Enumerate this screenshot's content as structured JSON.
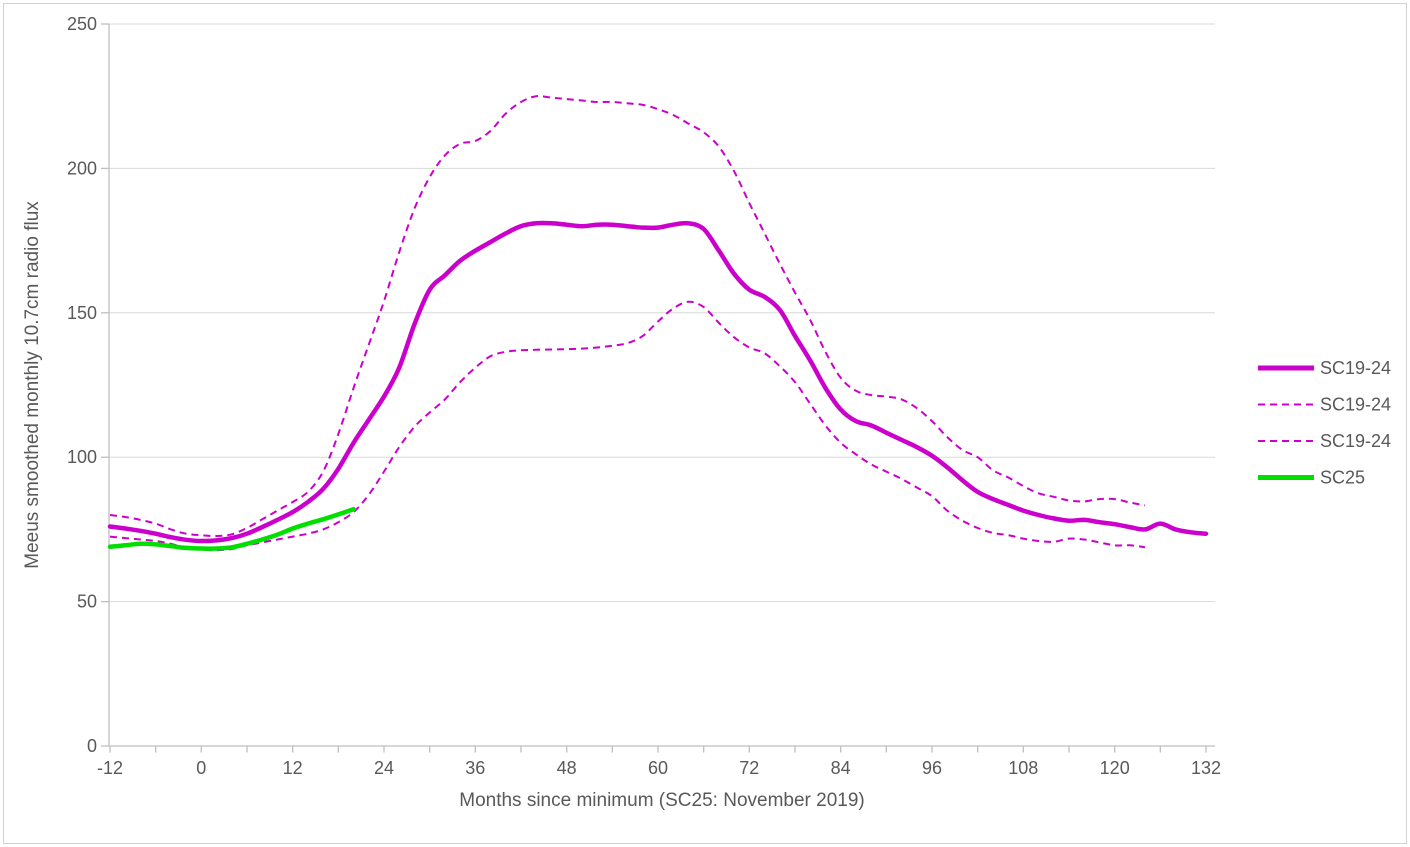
{
  "window": {
    "background": "#FFFFFF",
    "border_color": "#D2D2D2"
  },
  "chart_data": {
    "type": "line",
    "title": "",
    "xlabel": "Months since minimum (SC25: November 2019)",
    "ylabel": "Meeus smoothed monthly 10.7cm radio flux",
    "xlim": [
      -12,
      132
    ],
    "ylim": [
      0,
      250
    ],
    "grid": "horizontal",
    "x_ticks": [
      -12,
      0,
      12,
      24,
      36,
      48,
      60,
      72,
      84,
      96,
      108,
      120,
      132
    ],
    "x_tick_labels": [
      "-12",
      "0",
      "12",
      "24",
      "36",
      "48",
      "60",
      "72",
      "84",
      "96",
      "108",
      "120",
      "132"
    ],
    "x_minor_tick_step": 6,
    "y_ticks": [
      0,
      50,
      100,
      150,
      200,
      250
    ],
    "y_tick_labels": [
      "0",
      "50",
      "100",
      "150",
      "200",
      "250"
    ],
    "colors": {
      "magenta": "#CC00CC",
      "green": "#00DF00",
      "text": "#595959",
      "gridline": "#D9D9D9",
      "axis_line": "#BFBFBF"
    },
    "legend": {
      "position": "right",
      "entries": [
        {
          "label": "SC19-24",
          "style": "solid",
          "color": "#CC00CC"
        },
        {
          "label": "SC19-24",
          "style": "dashed",
          "color": "#CC00CC"
        },
        {
          "label": "SC19-24",
          "style": "dashed",
          "color": "#CC00CC"
        },
        {
          "label": "SC25",
          "style": "solid",
          "color": "#00DF00"
        }
      ]
    },
    "series": [
      {
        "name": "SC19-24",
        "role": "max",
        "style": "dashed",
        "color": "#CC00CC",
        "width": 2,
        "points": [
          [
            -12,
            80
          ],
          [
            -10,
            79.3
          ],
          [
            -8,
            78.3
          ],
          [
            -6,
            77
          ],
          [
            -4,
            75
          ],
          [
            -2,
            73.5
          ],
          [
            0,
            73
          ],
          [
            2,
            72.7
          ],
          [
            4,
            73.3
          ],
          [
            6,
            75.5
          ],
          [
            8,
            78.5
          ],
          [
            10,
            81.5
          ],
          [
            12,
            84.5
          ],
          [
            14,
            88
          ],
          [
            16,
            95
          ],
          [
            18,
            108
          ],
          [
            20,
            124
          ],
          [
            22,
            139
          ],
          [
            24,
            154
          ],
          [
            26,
            171
          ],
          [
            28,
            186
          ],
          [
            30,
            197
          ],
          [
            32,
            204.5
          ],
          [
            34,
            208.5
          ],
          [
            36,
            209.5
          ],
          [
            38,
            213
          ],
          [
            40,
            219
          ],
          [
            42,
            223
          ],
          [
            44,
            225
          ],
          [
            46,
            224.5
          ],
          [
            48,
            224
          ],
          [
            50,
            223.5
          ],
          [
            52,
            223
          ],
          [
            54,
            223
          ],
          [
            56,
            222.5
          ],
          [
            58,
            222
          ],
          [
            60,
            220.5
          ],
          [
            62,
            218.5
          ],
          [
            64,
            215.5
          ],
          [
            66,
            212.5
          ],
          [
            68,
            207.5
          ],
          [
            70,
            199
          ],
          [
            72,
            188
          ],
          [
            74,
            177.5
          ],
          [
            76,
            167
          ],
          [
            78,
            157
          ],
          [
            80,
            147.5
          ],
          [
            82,
            136.5
          ],
          [
            84,
            127.5
          ],
          [
            86,
            123
          ],
          [
            88,
            121.5
          ],
          [
            90,
            121
          ],
          [
            92,
            120
          ],
          [
            94,
            117
          ],
          [
            96,
            112.5
          ],
          [
            98,
            107
          ],
          [
            100,
            102.5
          ],
          [
            102,
            100
          ],
          [
            104,
            95.5
          ],
          [
            106,
            93
          ],
          [
            108,
            90
          ],
          [
            110,
            87.5
          ],
          [
            112,
            86.3
          ],
          [
            114,
            85
          ],
          [
            116,
            84.7
          ],
          [
            118,
            85.5
          ],
          [
            120,
            85.5
          ],
          [
            122,
            84.3
          ],
          [
            124,
            83.3
          ]
        ]
      },
      {
        "name": "SC19-24",
        "role": "min",
        "style": "dashed",
        "color": "#CC00CC",
        "width": 2,
        "points": [
          [
            -12,
            72.5
          ],
          [
            -10,
            72
          ],
          [
            -8,
            71.5
          ],
          [
            -6,
            71
          ],
          [
            -4,
            70
          ],
          [
            -2,
            68.7
          ],
          [
            0,
            68
          ],
          [
            2,
            67.8
          ],
          [
            4,
            68.2
          ],
          [
            6,
            69.5
          ],
          [
            8,
            70.5
          ],
          [
            10,
            71.5
          ],
          [
            12,
            72.5
          ],
          [
            14,
            73.5
          ],
          [
            16,
            75
          ],
          [
            18,
            77.5
          ],
          [
            20,
            81
          ],
          [
            22,
            87
          ],
          [
            24,
            95
          ],
          [
            26,
            103.5
          ],
          [
            28,
            110.5
          ],
          [
            30,
            115.5
          ],
          [
            32,
            120
          ],
          [
            34,
            126
          ],
          [
            36,
            131
          ],
          [
            38,
            135
          ],
          [
            40,
            136.5
          ],
          [
            42,
            137
          ],
          [
            44,
            137.2
          ],
          [
            46,
            137.3
          ],
          [
            48,
            137.4
          ],
          [
            50,
            137.6
          ],
          [
            52,
            138
          ],
          [
            54,
            138.6
          ],
          [
            56,
            139.5
          ],
          [
            58,
            142
          ],
          [
            60,
            147
          ],
          [
            62,
            151.5
          ],
          [
            64,
            153.8
          ],
          [
            66,
            152
          ],
          [
            68,
            146.5
          ],
          [
            70,
            141.5
          ],
          [
            72,
            138
          ],
          [
            74,
            136
          ],
          [
            76,
            131.5
          ],
          [
            78,
            126
          ],
          [
            80,
            118.5
          ],
          [
            82,
            111
          ],
          [
            84,
            105
          ],
          [
            86,
            101
          ],
          [
            88,
            97.5
          ],
          [
            90,
            95
          ],
          [
            92,
            92.5
          ],
          [
            94,
            89.5
          ],
          [
            96,
            86.5
          ],
          [
            98,
            81.5
          ],
          [
            100,
            78
          ],
          [
            102,
            75.5
          ],
          [
            104,
            73.8
          ],
          [
            106,
            73
          ],
          [
            108,
            71.8
          ],
          [
            110,
            71
          ],
          [
            112,
            70.7
          ],
          [
            114,
            71.8
          ],
          [
            116,
            71.5
          ],
          [
            118,
            70.5
          ],
          [
            120,
            69.5
          ],
          [
            122,
            69.5
          ],
          [
            124,
            68.8
          ]
        ]
      },
      {
        "name": "SC19-24",
        "role": "mean",
        "style": "solid",
        "color": "#CC00CC",
        "width": 4.5,
        "points": [
          [
            -12,
            76
          ],
          [
            -10,
            75.3
          ],
          [
            -8,
            74.5
          ],
          [
            -6,
            73.5
          ],
          [
            -4,
            72.3
          ],
          [
            -2,
            71.4
          ],
          [
            0,
            71
          ],
          [
            2,
            71.2
          ],
          [
            4,
            72
          ],
          [
            6,
            73.5
          ],
          [
            8,
            75.8
          ],
          [
            10,
            78.3
          ],
          [
            12,
            81
          ],
          [
            14,
            84.5
          ],
          [
            16,
            89
          ],
          [
            18,
            96
          ],
          [
            20,
            105
          ],
          [
            22,
            113
          ],
          [
            24,
            121
          ],
          [
            26,
            131
          ],
          [
            28,
            146
          ],
          [
            30,
            158
          ],
          [
            32,
            163
          ],
          [
            34,
            168
          ],
          [
            36,
            171.5
          ],
          [
            38,
            174.5
          ],
          [
            40,
            177.5
          ],
          [
            42,
            180
          ],
          [
            44,
            181
          ],
          [
            46,
            181
          ],
          [
            48,
            180.5
          ],
          [
            50,
            180
          ],
          [
            52,
            180.5
          ],
          [
            54,
            180.5
          ],
          [
            56,
            180
          ],
          [
            58,
            179.5
          ],
          [
            60,
            179.5
          ],
          [
            62,
            180.5
          ],
          [
            64,
            181
          ],
          [
            66,
            179
          ],
          [
            68,
            171.5
          ],
          [
            70,
            163.5
          ],
          [
            72,
            158
          ],
          [
            74,
            155.5
          ],
          [
            76,
            151
          ],
          [
            78,
            142
          ],
          [
            80,
            133.5
          ],
          [
            82,
            124
          ],
          [
            84,
            116.5
          ],
          [
            86,
            112.5
          ],
          [
            88,
            111
          ],
          [
            90,
            108.5
          ],
          [
            92,
            106
          ],
          [
            94,
            103.5
          ],
          [
            96,
            100.5
          ],
          [
            98,
            96.5
          ],
          [
            100,
            92
          ],
          [
            102,
            88
          ],
          [
            104,
            85.5
          ],
          [
            106,
            83.5
          ],
          [
            108,
            81.5
          ],
          [
            110,
            80
          ],
          [
            112,
            78.8
          ],
          [
            114,
            78
          ],
          [
            116,
            78.3
          ],
          [
            118,
            77.5
          ],
          [
            120,
            76.8
          ],
          [
            122,
            75.8
          ],
          [
            124,
            75
          ],
          [
            126,
            77
          ],
          [
            128,
            75
          ],
          [
            130,
            74
          ],
          [
            132,
            73.5
          ]
        ]
      },
      {
        "name": "SC25",
        "role": "sc25",
        "style": "solid",
        "color": "#00DF00",
        "width": 4.5,
        "points": [
          [
            -12,
            69
          ],
          [
            -10,
            69.5
          ],
          [
            -8,
            70
          ],
          [
            -6,
            69.8
          ],
          [
            -4,
            69.2
          ],
          [
            -2,
            68.6
          ],
          [
            0,
            68.4
          ],
          [
            2,
            68.4
          ],
          [
            4,
            68.8
          ],
          [
            6,
            70
          ],
          [
            8,
            71.5
          ],
          [
            10,
            73.2
          ],
          [
            12,
            75.3
          ],
          [
            14,
            77
          ],
          [
            16,
            78.5
          ],
          [
            18,
            80.2
          ],
          [
            20,
            82
          ]
        ]
      }
    ]
  }
}
